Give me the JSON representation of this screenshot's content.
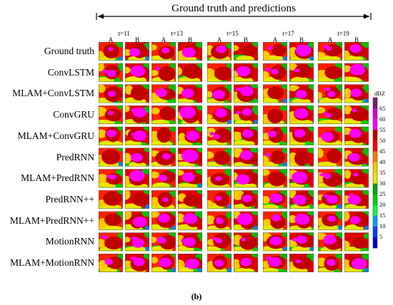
{
  "header": {
    "title": "Ground truth and predictions"
  },
  "time_steps": [
    "t=11",
    "t=13",
    "t=15",
    "t=17",
    "t=19"
  ],
  "sub_labels": [
    "A",
    "B"
  ],
  "rows": [
    "Ground truth",
    "ConvLSTM",
    "MLAM+ConvLSTM",
    "ConvGRU",
    "MLAM+ConvGRU",
    "PredRNN",
    "MLAM+PredRNN",
    "PredRNN++",
    "MLAM+PredRNN++",
    "MotionRNN",
    "MLAM+MotionRNN"
  ],
  "colorbar": {
    "unit": "dBZ",
    "ticks": [
      "65",
      "60",
      "55",
      "50",
      "45",
      "40",
      "35",
      "30",
      "25",
      "20",
      "15",
      "10",
      "5"
    ],
    "colors": [
      "#7a1a6e",
      "#d400d4",
      "#ff00ff",
      "#c00000",
      "#ff0000",
      "#ff7a00",
      "#ffc800",
      "#e8e800",
      "#00a000",
      "#00d000",
      "#00ff40",
      "#00a0ff",
      "#0040ff",
      "#0000c8"
    ]
  },
  "caption": "(b)"
}
